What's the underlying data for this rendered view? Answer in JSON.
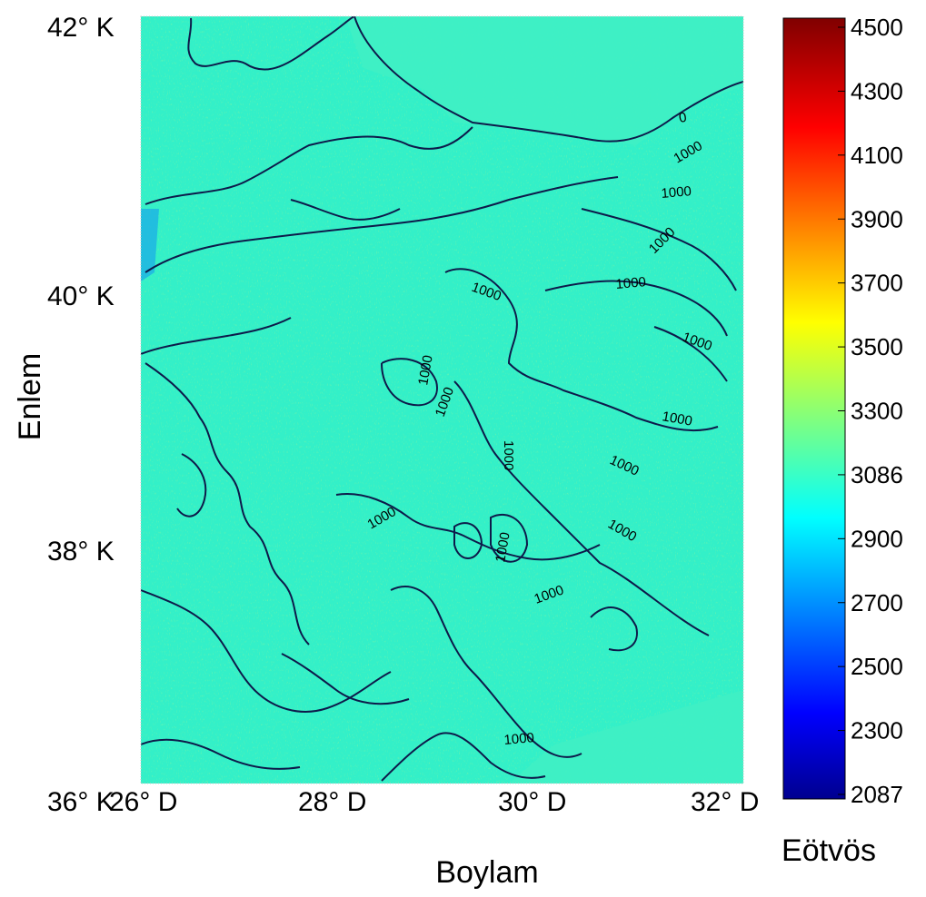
{
  "map": {
    "x_label": "Boylam",
    "y_label": "Enlem",
    "x_ticks": [
      "26° D",
      "28° D",
      "30° D",
      "32° D"
    ],
    "y_ticks": [
      "42° K",
      "40° K",
      "38° K",
      "36° K"
    ],
    "x_tick_values": [
      26,
      28,
      30,
      32
    ],
    "y_tick_values": [
      42,
      40,
      38,
      36
    ],
    "lon_range": [
      26,
      32
    ],
    "lat_range": [
      36,
      42
    ],
    "contour_labels": [
      "0",
      "1000",
      "1000",
      "1000",
      "1000",
      "1000",
      "1000",
      "1000",
      "1000",
      "1000",
      "1000",
      "1000",
      "1000",
      "1000",
      "1000",
      "1000",
      "1000"
    ],
    "field_base_color": "#33f0c8",
    "contour_color": "#0d1a4a"
  },
  "colorbar": {
    "unit": "Eötvös",
    "tick_labels": [
      "4500",
      "4300",
      "4100",
      "3900",
      "3700",
      "3500",
      "3300",
      "3086",
      "2900",
      "2700",
      "2500",
      "2300",
      "2087"
    ],
    "min": 2087,
    "max": 4500,
    "colormap": "jet"
  }
}
